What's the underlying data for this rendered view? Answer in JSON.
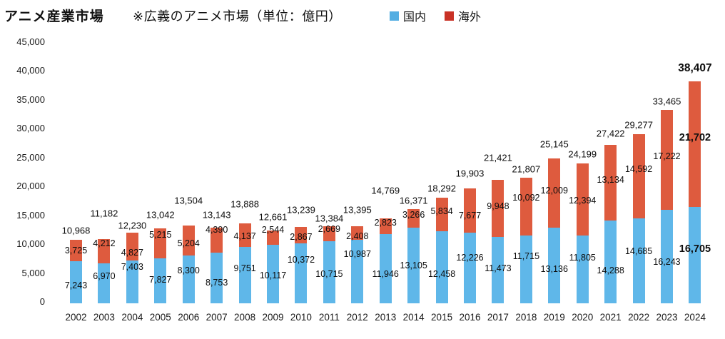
{
  "header": {
    "title": "アニメ産業市場",
    "subtitle": "※広義のアニメ市場（単位：億円）",
    "legend": [
      {
        "label": "国内",
        "color": "#54AEE2"
      },
      {
        "label": "海外",
        "color": "#C93226"
      }
    ]
  },
  "chart_data": {
    "type": "bar",
    "stacked": true,
    "title": "アニメ産業市場",
    "subtitle": "※広義のアニメ市場（単位：億円）",
    "unit": "億円",
    "categories": [
      2002,
      2003,
      2004,
      2005,
      2006,
      2007,
      2008,
      2009,
      2010,
      2011,
      2012,
      2013,
      2014,
      2015,
      2016,
      2017,
      2018,
      2019,
      2020,
      2021,
      2022,
      2023,
      2024
    ],
    "series": [
      {
        "name": "国内",
        "color": "#5FB7E9",
        "values": [
          7243,
          6970,
          7403,
          7827,
          8300,
          8753,
          9751,
          10117,
          10372,
          10715,
          10987,
          11946,
          13105,
          12458,
          12226,
          11473,
          11715,
          13136,
          11805,
          14288,
          14685,
          16243,
          16705
        ]
      },
      {
        "name": "海外",
        "color": "#DE5B3E",
        "values": [
          3725,
          4212,
          4827,
          5215,
          5204,
          4390,
          4137,
          2544,
          2867,
          2669,
          2408,
          2823,
          3266,
          5834,
          7677,
          9948,
          10092,
          12009,
          12394,
          13134,
          14592,
          17222,
          21702
        ]
      }
    ],
    "totals": [
      10968,
      11182,
      12230,
      13042,
      13504,
      13143,
      13888,
      12661,
      13239,
      13384,
      13395,
      14769,
      16371,
      18292,
      19903,
      21421,
      21807,
      25145,
      24199,
      27422,
      29277,
      33465,
      38407
    ],
    "ylim": [
      0,
      45000
    ],
    "yticks": [
      0,
      5000,
      10000,
      15000,
      20000,
      25000,
      30000,
      35000,
      40000,
      45000
    ],
    "grid": false,
    "legend_position": "top",
    "value_labels": true
  }
}
